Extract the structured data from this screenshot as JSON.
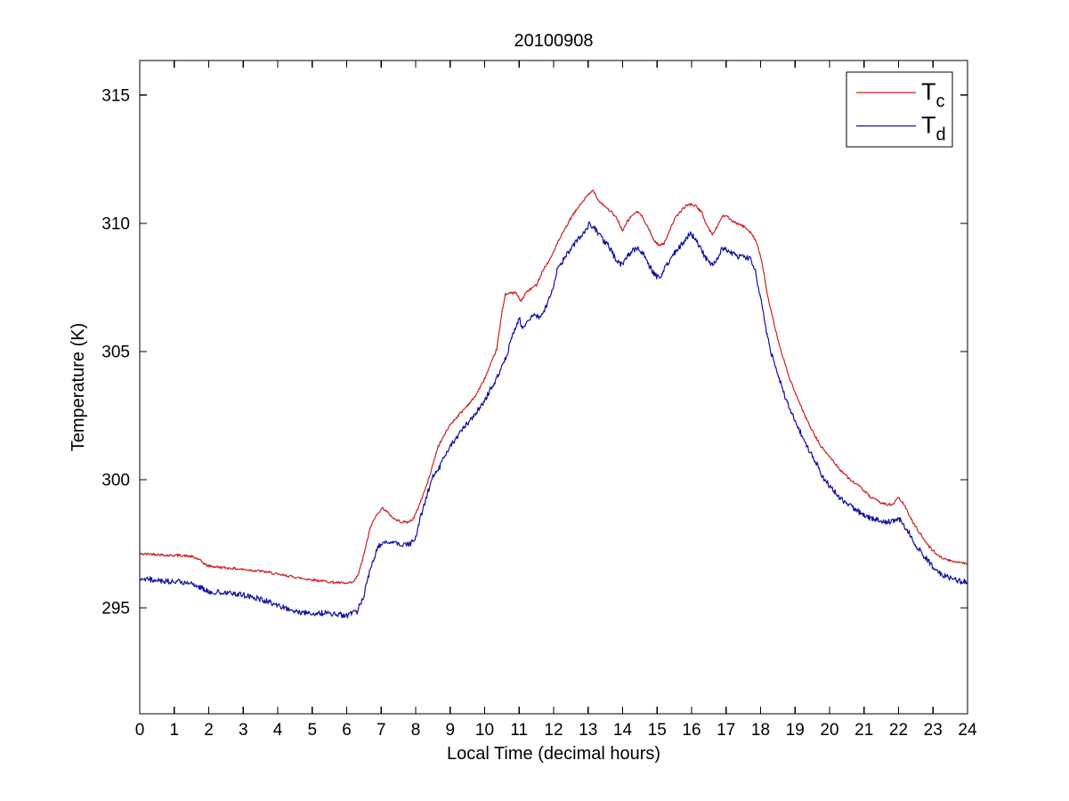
{
  "chart_data": {
    "type": "line",
    "title": "20100908",
    "xlabel": "Local Time (decimal hours)",
    "ylabel": "Temperature (K)",
    "xlim": [
      0,
      24
    ],
    "ylim": [
      290.87,
      316.35
    ],
    "xticks": [
      0,
      1,
      2,
      3,
      4,
      5,
      6,
      7,
      8,
      9,
      10,
      11,
      12,
      13,
      14,
      15,
      16,
      17,
      18,
      19,
      20,
      21,
      22,
      23,
      24
    ],
    "yticks": [
      295,
      300,
      305,
      310,
      315
    ],
    "grid": false,
    "axis_color": "#000000",
    "background_color": "#ffffff",
    "legend": {
      "position": "top-right",
      "entries": [
        {
          "main": "T",
          "sub": "c",
          "color": "#cc2222"
        },
        {
          "main": "T",
          "sub": "d",
          "color": "#1111a0"
        }
      ]
    },
    "series": [
      {
        "name": "T_c",
        "color": "#cc2222",
        "noise": 0.05,
        "points": [
          [
            0,
            297.1
          ],
          [
            0.4,
            297.1
          ],
          [
            0.8,
            297.05
          ],
          [
            1.2,
            297.05
          ],
          [
            1.5,
            297.0
          ],
          [
            1.7,
            296.9
          ],
          [
            1.95,
            296.65
          ],
          [
            2.2,
            296.6
          ],
          [
            2.6,
            296.55
          ],
          [
            3.0,
            296.5
          ],
          [
            3.4,
            296.45
          ],
          [
            3.7,
            296.4
          ],
          [
            4.0,
            296.3
          ],
          [
            4.3,
            296.25
          ],
          [
            4.7,
            296.15
          ],
          [
            5.0,
            296.1
          ],
          [
            5.3,
            296.05
          ],
          [
            5.6,
            296.0
          ],
          [
            6.0,
            295.95
          ],
          [
            6.2,
            296.0
          ],
          [
            6.35,
            296.35
          ],
          [
            6.5,
            297.1
          ],
          [
            6.7,
            298.2
          ],
          [
            6.9,
            298.7
          ],
          [
            7.05,
            298.9
          ],
          [
            7.2,
            298.7
          ],
          [
            7.4,
            298.45
          ],
          [
            7.6,
            298.35
          ],
          [
            7.8,
            298.35
          ],
          [
            7.95,
            298.5
          ],
          [
            8.1,
            299.0
          ],
          [
            8.35,
            299.9
          ],
          [
            8.65,
            301.3
          ],
          [
            9.0,
            302.15
          ],
          [
            9.3,
            302.6
          ],
          [
            9.5,
            302.9
          ],
          [
            9.7,
            303.2
          ],
          [
            9.95,
            303.8
          ],
          [
            10.15,
            304.4
          ],
          [
            10.35,
            305.1
          ],
          [
            10.5,
            306.5
          ],
          [
            10.6,
            307.25
          ],
          [
            10.9,
            307.3
          ],
          [
            11.05,
            306.95
          ],
          [
            11.2,
            307.3
          ],
          [
            11.5,
            307.6
          ],
          [
            11.7,
            308.2
          ],
          [
            11.9,
            308.6
          ],
          [
            12.1,
            309.2
          ],
          [
            12.3,
            309.7
          ],
          [
            12.5,
            310.2
          ],
          [
            12.7,
            310.6
          ],
          [
            12.9,
            310.95
          ],
          [
            13.0,
            311.1
          ],
          [
            13.15,
            311.3
          ],
          [
            13.3,
            310.9
          ],
          [
            13.5,
            310.65
          ],
          [
            13.7,
            310.4
          ],
          [
            13.85,
            310.15
          ],
          [
            14.0,
            309.7
          ],
          [
            14.15,
            310.1
          ],
          [
            14.3,
            310.35
          ],
          [
            14.45,
            310.45
          ],
          [
            14.6,
            310.2
          ],
          [
            14.75,
            309.8
          ],
          [
            14.9,
            309.35
          ],
          [
            15.05,
            309.15
          ],
          [
            15.2,
            309.2
          ],
          [
            15.35,
            309.7
          ],
          [
            15.5,
            310.15
          ],
          [
            15.7,
            310.5
          ],
          [
            15.85,
            310.7
          ],
          [
            16.0,
            310.75
          ],
          [
            16.15,
            310.65
          ],
          [
            16.3,
            310.4
          ],
          [
            16.45,
            309.9
          ],
          [
            16.6,
            309.55
          ],
          [
            16.75,
            309.9
          ],
          [
            16.9,
            310.3
          ],
          [
            17.05,
            310.25
          ],
          [
            17.2,
            310.05
          ],
          [
            17.4,
            309.95
          ],
          [
            17.6,
            309.8
          ],
          [
            17.75,
            309.6
          ],
          [
            17.9,
            309.2
          ],
          [
            18.05,
            308.4
          ],
          [
            18.2,
            307.2
          ],
          [
            18.4,
            306.0
          ],
          [
            18.6,
            305.0
          ],
          [
            18.8,
            304.1
          ],
          [
            19.0,
            303.4
          ],
          [
            19.25,
            302.6
          ],
          [
            19.5,
            301.9
          ],
          [
            19.75,
            301.3
          ],
          [
            20.0,
            300.9
          ],
          [
            20.3,
            300.4
          ],
          [
            20.6,
            300.0
          ],
          [
            20.9,
            299.7
          ],
          [
            21.2,
            299.3
          ],
          [
            21.5,
            299.1
          ],
          [
            21.8,
            299.0
          ],
          [
            22.0,
            299.3
          ],
          [
            22.15,
            299.05
          ],
          [
            22.35,
            298.5
          ],
          [
            22.6,
            297.95
          ],
          [
            22.85,
            297.45
          ],
          [
            23.1,
            297.1
          ],
          [
            23.35,
            296.9
          ],
          [
            23.6,
            296.8
          ],
          [
            23.8,
            296.8
          ],
          [
            24,
            296.7
          ]
        ]
      },
      {
        "name": "T_d",
        "color": "#1111a0",
        "noise": 0.11,
        "points": [
          [
            0,
            296.15
          ],
          [
            0.4,
            296.1
          ],
          [
            0.8,
            296.05
          ],
          [
            1.2,
            296.0
          ],
          [
            1.6,
            295.9
          ],
          [
            2.0,
            295.65
          ],
          [
            2.4,
            295.6
          ],
          [
            2.8,
            295.55
          ],
          [
            3.2,
            295.45
          ],
          [
            3.6,
            295.3
          ],
          [
            3.9,
            295.15
          ],
          [
            4.2,
            295.0
          ],
          [
            4.5,
            294.85
          ],
          [
            4.9,
            294.8
          ],
          [
            5.3,
            294.8
          ],
          [
            5.7,
            294.75
          ],
          [
            6.0,
            294.7
          ],
          [
            6.3,
            294.85
          ],
          [
            6.5,
            295.5
          ],
          [
            6.7,
            296.6
          ],
          [
            6.9,
            297.35
          ],
          [
            7.05,
            297.6
          ],
          [
            7.25,
            297.5
          ],
          [
            7.45,
            297.55
          ],
          [
            7.65,
            297.45
          ],
          [
            7.85,
            297.5
          ],
          [
            8.0,
            297.7
          ],
          [
            8.1,
            298.3
          ],
          [
            8.3,
            299.3
          ],
          [
            8.5,
            300.1
          ],
          [
            8.7,
            300.5
          ],
          [
            8.9,
            301.1
          ],
          [
            9.1,
            301.5
          ],
          [
            9.3,
            301.85
          ],
          [
            9.5,
            302.2
          ],
          [
            9.7,
            302.5
          ],
          [
            9.95,
            303.0
          ],
          [
            10.2,
            303.6
          ],
          [
            10.45,
            304.2
          ],
          [
            10.65,
            304.9
          ],
          [
            10.85,
            305.8
          ],
          [
            11.0,
            306.3
          ],
          [
            11.1,
            305.9
          ],
          [
            11.25,
            306.2
          ],
          [
            11.4,
            306.45
          ],
          [
            11.55,
            306.35
          ],
          [
            11.7,
            306.5
          ],
          [
            11.85,
            307.0
          ],
          [
            11.95,
            307.3
          ],
          [
            12.1,
            308.2
          ],
          [
            12.3,
            308.6
          ],
          [
            12.5,
            309.0
          ],
          [
            12.7,
            309.35
          ],
          [
            12.9,
            309.7
          ],
          [
            13.05,
            310.0
          ],
          [
            13.2,
            309.8
          ],
          [
            13.4,
            309.4
          ],
          [
            13.6,
            309.1
          ],
          [
            13.8,
            308.6
          ],
          [
            14.0,
            308.35
          ],
          [
            14.15,
            308.75
          ],
          [
            14.3,
            308.95
          ],
          [
            14.45,
            309.05
          ],
          [
            14.6,
            308.8
          ],
          [
            14.75,
            308.4
          ],
          [
            14.95,
            307.95
          ],
          [
            15.1,
            307.9
          ],
          [
            15.25,
            308.3
          ],
          [
            15.4,
            308.65
          ],
          [
            15.6,
            309.0
          ],
          [
            15.8,
            309.35
          ],
          [
            15.95,
            309.6
          ],
          [
            16.1,
            309.45
          ],
          [
            16.25,
            309.05
          ],
          [
            16.4,
            308.65
          ],
          [
            16.55,
            308.4
          ],
          [
            16.7,
            308.45
          ],
          [
            16.85,
            308.95
          ],
          [
            17.0,
            309.0
          ],
          [
            17.15,
            308.85
          ],
          [
            17.35,
            308.7
          ],
          [
            17.55,
            308.7
          ],
          [
            17.7,
            308.6
          ],
          [
            17.85,
            308.1
          ],
          [
            18.0,
            307.1
          ],
          [
            18.15,
            305.9
          ],
          [
            18.3,
            305.0
          ],
          [
            18.5,
            304.1
          ],
          [
            18.7,
            303.3
          ],
          [
            18.9,
            302.6
          ],
          [
            19.1,
            302.0
          ],
          [
            19.35,
            301.3
          ],
          [
            19.6,
            300.7
          ],
          [
            19.8,
            300.1
          ],
          [
            20.1,
            299.6
          ],
          [
            20.4,
            299.15
          ],
          [
            20.7,
            298.9
          ],
          [
            21.0,
            298.6
          ],
          [
            21.3,
            298.45
          ],
          [
            21.6,
            298.35
          ],
          [
            21.9,
            298.4
          ],
          [
            22.05,
            298.45
          ],
          [
            22.25,
            298.05
          ],
          [
            22.5,
            297.45
          ],
          [
            22.75,
            297.0
          ],
          [
            23.0,
            296.6
          ],
          [
            23.25,
            296.3
          ],
          [
            23.5,
            296.15
          ],
          [
            23.75,
            296.05
          ],
          [
            24,
            296.0
          ]
        ]
      }
    ]
  }
}
